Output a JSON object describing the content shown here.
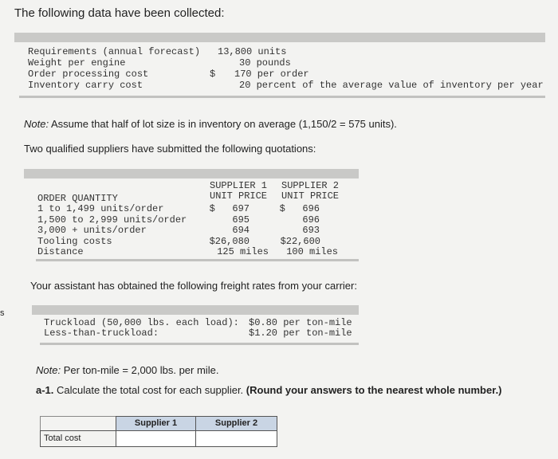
{
  "edge_fragment": "s",
  "intro": "The following data have been collected:",
  "data_table": {
    "rows": [
      [
        "Requirements (annual forecast)",
        "",
        "13,800 units"
      ],
      [
        "Weight per engine",
        "",
        "30 pounds"
      ],
      [
        "Order processing cost",
        "$",
        "170 per order"
      ],
      [
        "Inventory carry cost",
        "",
        "20 percent of the average value of inventory per year"
      ]
    ]
  },
  "note1": {
    "label": "Note:",
    "text": "Assume that half of lot size is in inventory on average (1,150/2 = 575 units)."
  },
  "quotes_intro": "Two qualified suppliers have submitted the following quotations:",
  "quotes_table": {
    "header": [
      [
        "SUPPLIER 1",
        "UNIT PRICE"
      ],
      [
        "SUPPLIER 2",
        "UNIT PRICE"
      ]
    ],
    "rows": [
      [
        "ORDER QUANTITY",
        "",
        ""
      ],
      [
        "1 to 1,499 units/order",
        "$   697",
        "$   696"
      ],
      [
        "1,500 to 2,999 units/order",
        "695",
        "696"
      ],
      [
        "3,000 + units/order",
        "694",
        "693"
      ],
      [
        "Tooling costs",
        "$26,080",
        "$22,600"
      ],
      [
        "Distance",
        "125 miles",
        "100 miles"
      ]
    ]
  },
  "freight_intro": "Your assistant has obtained the following freight rates from your carrier:",
  "freight_table": {
    "rows": [
      [
        "Truckload (50,000 lbs. each load):",
        "$0.80 per ton-mile"
      ],
      [
        "Less-than-truckload:",
        "$1.20 per ton-mile"
      ]
    ]
  },
  "note2": {
    "label": "Note:",
    "text": "Per ton-mile = 2,000 lbs. per mile."
  },
  "question": {
    "number": "a-1.",
    "text": "Calculate the total cost for each supplier.",
    "instruction": "(Round your answers to the nearest whole number.)"
  },
  "answer_table": {
    "header": [
      "Supplier 1",
      "Supplier 2"
    ],
    "row_label": "Total cost"
  }
}
